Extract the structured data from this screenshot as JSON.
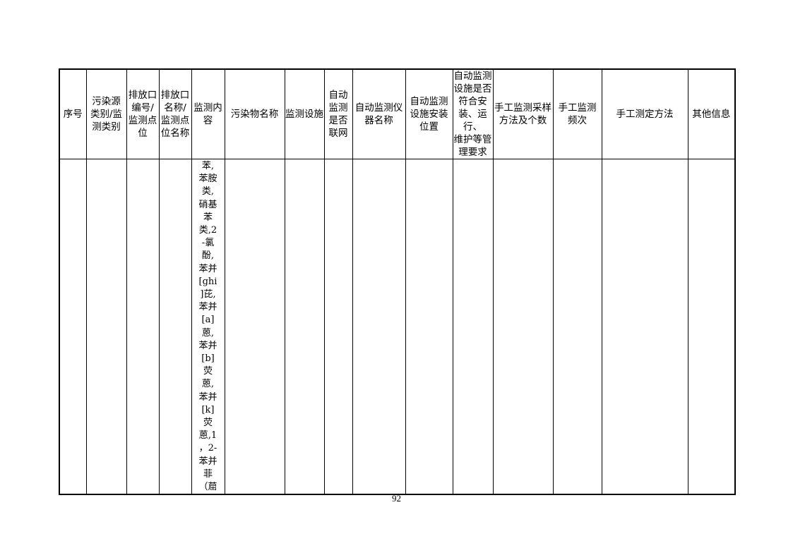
{
  "table": {
    "headers": [
      "序号",
      "污染源\n类别/监\n测类别",
      "排放口\n编号/\n监测点\n位",
      "排放口\n名称/\n监测点\n位名称",
      "监测内\n容",
      "污染物名称",
      "监测设施",
      "自动\n监测\n是否\n联网",
      "自动监测仪\n器名称",
      "自动监测\n设施安装\n位置",
      "自动监测\n设施是否\n符合安\n装、运行、\n维护等管\n理要求",
      "手工监测采样\n方法及个数",
      "手工监测\n频次",
      "手工测定方法",
      "其他信息"
    ],
    "row": {
      "monitoring_content": "苯,\n苯胺\n类,\n硝基\n苯\n类,2\n-氯\n酚,\n苯并\n[ghi\n]芘,\n苯并\n[a]\n蒽,\n苯并\n[b]\n荧\n蒽,\n苯并\n[k]\n荧\n蒽,1\n，2-\n苯并\n菲\n（䓛"
    }
  },
  "page_number": "92"
}
